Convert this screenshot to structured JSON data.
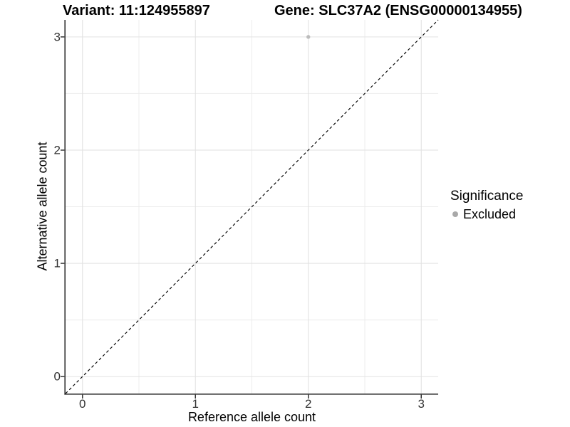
{
  "figure": {
    "title_left": "Variant: 11:124955897",
    "title_right": "Gene: SLC37A2 (ENSG00000134955)"
  },
  "chart_data": {
    "type": "scatter",
    "title": "Variant: 11:124955897 — Gene: SLC37A2 (ENSG00000134955)",
    "xlabel": "Reference allele count",
    "ylabel": "Alternative allele count",
    "xlim": [
      -0.15,
      3.15
    ],
    "ylim": [
      -0.15,
      3.15
    ],
    "x_ticks": [
      0,
      1,
      2,
      3
    ],
    "y_ticks": [
      0,
      1,
      2,
      3
    ],
    "minor_ticks": [
      0.5,
      1.5,
      2.5
    ],
    "grid": "major and minor gridlines, white panel",
    "series": [
      {
        "name": "Excluded",
        "marker": "circle",
        "color": "#bcbcbc",
        "points": [
          {
            "x": 2,
            "y": 3
          }
        ]
      }
    ],
    "reference_line": {
      "kind": "identity y = x",
      "style": "dashed",
      "color": "#000000"
    },
    "legend": {
      "title": "Significance",
      "position": "right",
      "entries": [
        {
          "label": "Excluded",
          "color": "#a9a9a9",
          "marker": "circle"
        }
      ]
    }
  },
  "colors": {
    "background": "#ffffff",
    "grid_major": "#e2e2e2",
    "grid_minor": "#ececec",
    "axis": "#333333",
    "tick_text": "#333333",
    "title_text": "#000000",
    "point": "#bcbcbc"
  }
}
